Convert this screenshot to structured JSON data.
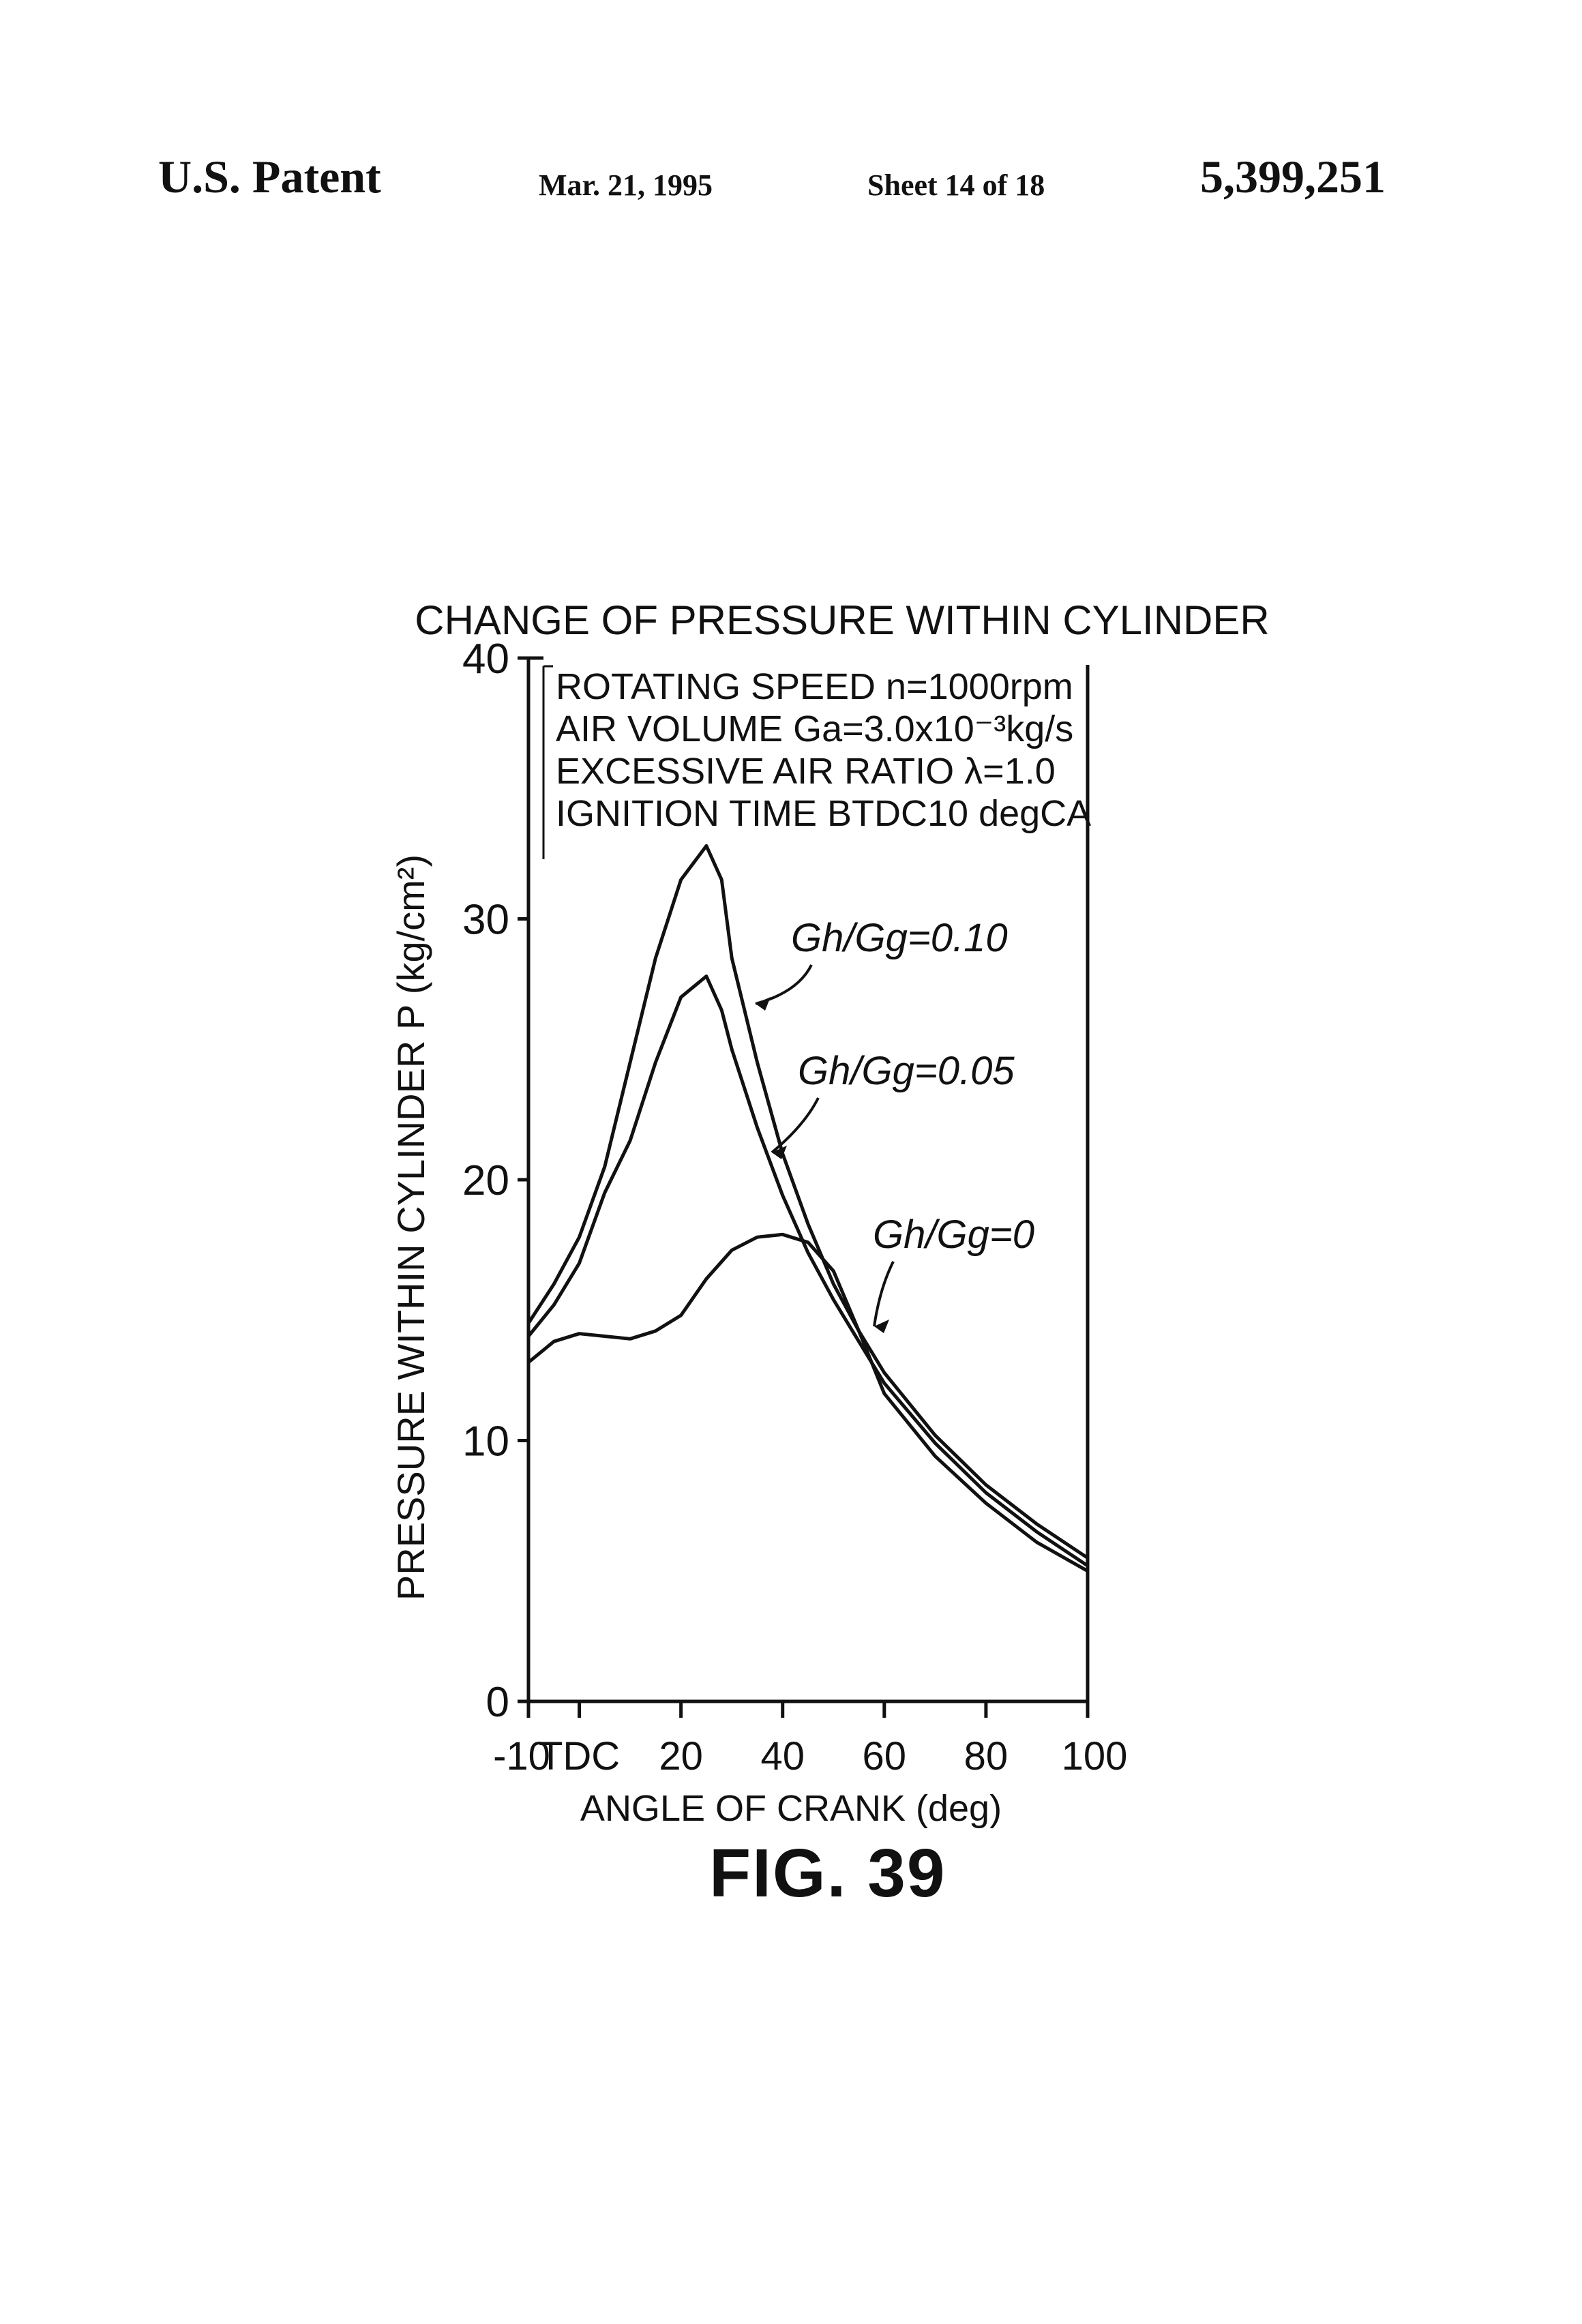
{
  "header": {
    "left": "U.S. Patent",
    "date": "Mar. 21, 1995",
    "sheet": "Sheet 14 of 18",
    "number": "5,399,251"
  },
  "figure_label": "FIG. 39",
  "chart_data": {
    "type": "line",
    "title": "CHANGE OF PRESSURE WITHIN CYLINDER",
    "xlabel": "ANGLE OF CRANK (deg)",
    "ylabel": "PRESSURE WITHIN CYLINDER P (kg/cm²)",
    "xlim": [
      -10,
      100
    ],
    "ylim": [
      0,
      40
    ],
    "x_ticks": [
      -10,
      0,
      20,
      40,
      60,
      80,
      100
    ],
    "x_tick_labels": [
      "-10",
      "TDC",
      "20",
      "40",
      "60",
      "80",
      "100"
    ],
    "y_ticks": [
      0,
      10,
      20,
      30,
      40
    ],
    "y_tick_labels": [
      "0",
      "10",
      "20",
      "30",
      "40"
    ],
    "conditions": [
      "ROTATING SPEED n=1000rpm",
      "AIR VOLUME Ga=3.0x10⁻³kg/s",
      "EXCESSIVE AIR RATIO λ=1.0",
      "IGNITION TIME BTDC10 degCA"
    ],
    "grid": false,
    "series": [
      {
        "name": "Gh/Gg=0.10",
        "x": [
          -10,
          -5,
          0,
          5,
          10,
          15,
          20,
          25,
          28,
          30,
          35,
          40,
          45,
          50,
          55,
          60,
          70,
          80,
          90,
          100
        ],
        "y": [
          14.5,
          16.0,
          17.8,
          20.5,
          24.5,
          28.5,
          31.5,
          32.8,
          31.5,
          28.5,
          24.5,
          21.0,
          18.3,
          16.0,
          14.2,
          12.6,
          10.2,
          8.3,
          6.8,
          5.5
        ]
      },
      {
        "name": "Gh/Gg=0.05",
        "x": [
          -10,
          -5,
          0,
          5,
          10,
          15,
          20,
          25,
          28,
          30,
          35,
          40,
          45,
          50,
          55,
          60,
          70,
          80,
          90,
          100
        ],
        "y": [
          14.0,
          15.2,
          16.8,
          19.5,
          21.5,
          24.5,
          27.0,
          27.8,
          26.5,
          25.0,
          22.0,
          19.4,
          17.2,
          15.4,
          13.8,
          12.2,
          9.9,
          8.0,
          6.5,
          5.2
        ]
      },
      {
        "name": "Gh/Gg=0",
        "x": [
          -10,
          -5,
          0,
          5,
          10,
          15,
          20,
          25,
          30,
          35,
          40,
          45,
          50,
          55,
          60,
          70,
          80,
          90,
          100
        ],
        "y": [
          13.0,
          13.8,
          14.1,
          14.0,
          13.9,
          14.2,
          14.8,
          16.2,
          17.3,
          17.8,
          17.9,
          17.6,
          16.5,
          14.2,
          11.8,
          9.4,
          7.6,
          6.1,
          5.0
        ]
      }
    ]
  }
}
